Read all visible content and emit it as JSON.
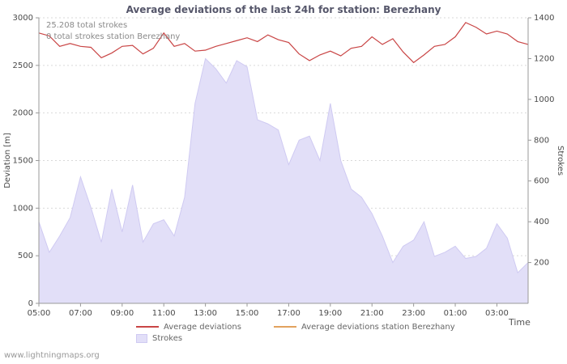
{
  "title": "Average deviations of the last 24h for station: Berezhany",
  "annotations": {
    "total_strokes": "25.208 total strokes",
    "station_strokes": "0 total strokes station Berezhany"
  },
  "axes": {
    "left_label": "Deviation [m]",
    "right_label": "Strokes",
    "x_label": "Time"
  },
  "legend": {
    "items": [
      {
        "label": "Average deviations",
        "swatch": "line",
        "color": "#c94545"
      },
      {
        "label": "Average deviations station Berezhany",
        "swatch": "line",
        "color": "#e2a25e"
      },
      {
        "label": "Strokes",
        "swatch": "area",
        "color": "#e2dff8"
      }
    ]
  },
  "watermark": "www.lightningmaps.org",
  "colors": {
    "deviation_line": "#c94545",
    "station_line": "#e2a25e",
    "strokes_fill": "#e2dff8",
    "strokes_edge": "#cfcaf2",
    "grid": "#d9d9d9",
    "axis": "#999999"
  },
  "chart_data": {
    "type": "line",
    "title": "Average deviations of the last 24h for station: Berezhany",
    "xlabel": "Time",
    "ylabel_left": "Deviation [m]",
    "ylabel_right": "Strokes",
    "x": [
      "05:00",
      "05:30",
      "06:00",
      "06:30",
      "07:00",
      "07:30",
      "08:00",
      "08:30",
      "09:00",
      "09:30",
      "10:00",
      "10:30",
      "11:00",
      "11:30",
      "12:00",
      "12:30",
      "13:00",
      "13:30",
      "14:00",
      "14:30",
      "15:00",
      "15:30",
      "16:00",
      "16:30",
      "17:00",
      "17:30",
      "18:00",
      "18:30",
      "19:00",
      "19:30",
      "20:00",
      "20:30",
      "21:00",
      "21:30",
      "22:00",
      "22:30",
      "23:00",
      "23:30",
      "00:00",
      "00:30",
      "01:00",
      "01:30",
      "02:00",
      "02:30",
      "03:00",
      "03:30",
      "04:00",
      "04:30"
    ],
    "x_ticks": [
      "05:00",
      "07:00",
      "09:00",
      "11:00",
      "13:00",
      "15:00",
      "17:00",
      "19:00",
      "21:00",
      "23:00",
      "01:00",
      "03:00"
    ],
    "left_axis": {
      "min": 0,
      "max": 3000,
      "step": 500
    },
    "right_axis": {
      "min": 0,
      "max": 1400,
      "step": 200
    },
    "grid": true,
    "legend_position": "bottom",
    "series": [
      {
        "name": "Average deviations",
        "type": "line",
        "axis": "left",
        "color": "#c94545",
        "values": [
          2840,
          2810,
          2700,
          2730,
          2700,
          2690,
          2580,
          2630,
          2700,
          2710,
          2620,
          2680,
          2840,
          2700,
          2730,
          2650,
          2660,
          2700,
          2730,
          2760,
          2790,
          2750,
          2820,
          2770,
          2740,
          2620,
          2550,
          2610,
          2650,
          2600,
          2680,
          2700,
          2800,
          2720,
          2780,
          2640,
          2530,
          2610,
          2700,
          2720,
          2800,
          2950,
          2900,
          2830,
          2860,
          2830,
          2750,
          2720
        ]
      },
      {
        "name": "Average deviations station Berezhany",
        "type": "line",
        "axis": "left",
        "color": "#e2a25e",
        "values": []
      },
      {
        "name": "Strokes",
        "type": "area",
        "axis": "right",
        "color": "#e2dff8",
        "edge_color": "#cfcaf2",
        "values": [
          400,
          250,
          330,
          420,
          620,
          470,
          300,
          560,
          350,
          580,
          300,
          390,
          410,
          330,
          520,
          980,
          1200,
          1150,
          1080,
          1190,
          1160,
          900,
          880,
          850,
          680,
          800,
          820,
          700,
          980,
          700,
          560,
          520,
          440,
          330,
          200,
          280,
          310,
          400,
          230,
          250,
          280,
          220,
          230,
          270,
          390,
          320,
          150,
          200
        ]
      }
    ]
  }
}
